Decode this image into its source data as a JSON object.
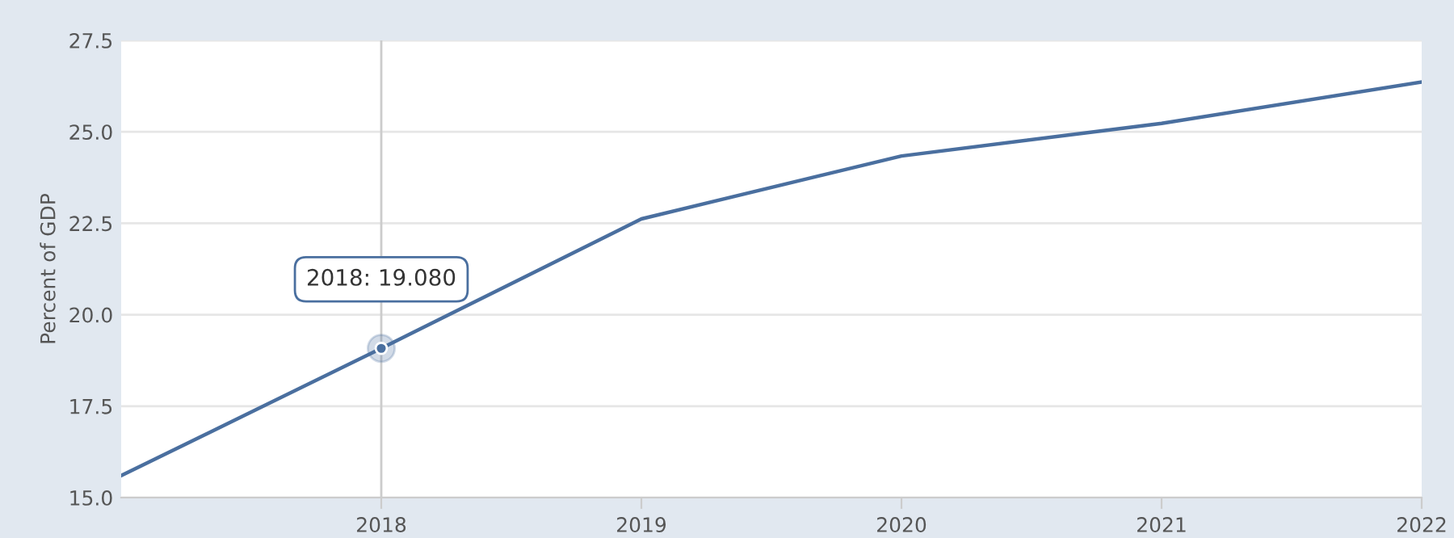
{
  "chart_data": {
    "type": "line",
    "ylabel": "Percent of GDP",
    "x": [
      2017,
      2018,
      2019,
      2020,
      2021,
      2022
    ],
    "series": [
      {
        "color": "#4a6f9f",
        "values": [
          15.6,
          19.08,
          22.62,
          24.34,
          25.23,
          26.36
        ]
      }
    ],
    "xlim": [
      2017,
      2022
    ],
    "xticks": [
      2018,
      2019,
      2020,
      2021,
      2022
    ],
    "ylim": [
      15,
      27.5
    ],
    "yticks": [
      {
        "value": 15,
        "label": "15.0"
      },
      {
        "value": 17.5,
        "label": "17.5"
      },
      {
        "value": 20,
        "label": "20.0"
      },
      {
        "value": 22.5,
        "label": "22.5"
      },
      {
        "value": 25,
        "label": "25.0"
      },
      {
        "value": 27.5,
        "label": "27.5"
      }
    ],
    "grid": "y",
    "marker": "none",
    "line_style": "solid",
    "ref_lines": [
      {
        "axis": "x",
        "value": 2018,
        "label": null,
        "color": "#cccccc"
      }
    ],
    "annotations": [
      {
        "text": "2018: 19.080",
        "x": 2018,
        "y": 19.08
      }
    ]
  }
}
